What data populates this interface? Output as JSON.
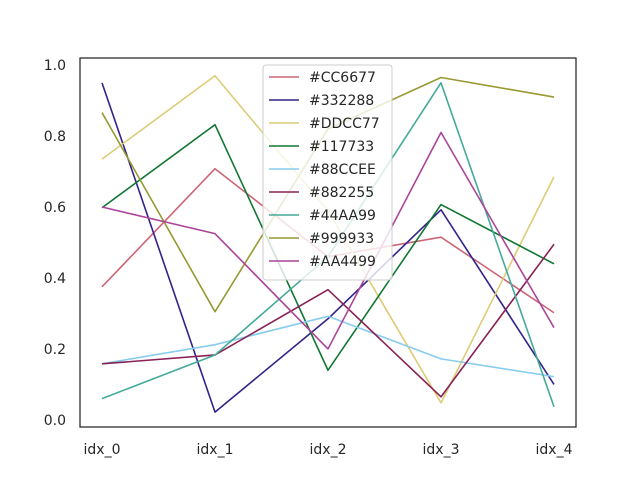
{
  "chart_data": {
    "type": "line",
    "title": "",
    "xlabel": "",
    "ylabel": "",
    "categories": [
      "idx_0",
      "idx_1",
      "idx_2",
      "idx_3",
      "idx_4"
    ],
    "ylim": [
      -0.02,
      1.02
    ],
    "yticks": [
      "0.0",
      "0.2",
      "0.4",
      "0.6",
      "0.8",
      "1.0"
    ],
    "grid": false,
    "legend_position": "top-center",
    "series": [
      {
        "name": "#CC6677",
        "color": "#CC6677",
        "values": [
          0.375,
          0.708,
          0.46,
          0.515,
          0.302
        ]
      },
      {
        "name": "#332288",
        "color": "#332288",
        "values": [
          0.95,
          0.022,
          0.285,
          0.592,
          0.1
        ]
      },
      {
        "name": "#DDCC77",
        "color": "#DDCC77",
        "values": [
          0.735,
          0.97,
          0.59,
          0.048,
          0.685
        ]
      },
      {
        "name": "#117733",
        "color": "#117733",
        "values": [
          0.598,
          0.832,
          0.14,
          0.607,
          0.44
        ]
      },
      {
        "name": "#88CCEE",
        "color": "#88CCEE",
        "values": [
          0.158,
          0.212,
          0.292,
          0.172,
          0.122
        ]
      },
      {
        "name": "#882255",
        "color": "#882255",
        "values": [
          0.158,
          0.183,
          0.367,
          0.065,
          0.495
        ]
      },
      {
        "name": "#44AA99",
        "color": "#44AA99",
        "values": [
          0.06,
          0.183,
          0.46,
          0.95,
          0.037
        ]
      },
      {
        "name": "#999933",
        "color": "#999933",
        "values": [
          0.866,
          0.305,
          0.82,
          0.965,
          0.91
        ]
      },
      {
        "name": "#AA4499",
        "color": "#AA4499",
        "values": [
          0.6,
          0.525,
          0.2,
          0.81,
          0.26
        ]
      }
    ]
  }
}
